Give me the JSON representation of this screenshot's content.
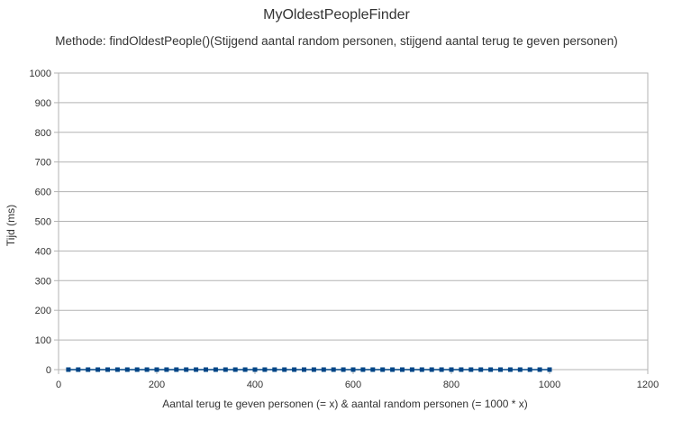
{
  "chart_data": {
    "type": "line",
    "title": "MyOldestPeopleFinder",
    "subtitle": "Methode: findOldestPeople()(Stijgend aantal random personen, stijgend aantal terug te geven personen)",
    "xlabel": "Aantal terug te geven personen (= x) & aantal random personen (= 1000 * x)",
    "ylabel": "Tijd (ms)",
    "xlim": [
      0,
      1200
    ],
    "ylim": [
      0,
      1000
    ],
    "xticks": [
      0,
      200,
      400,
      600,
      800,
      1000,
      1200
    ],
    "yticks": [
      0,
      100,
      200,
      300,
      400,
      500,
      600,
      700,
      800,
      900,
      1000
    ],
    "grid": true,
    "line_color": "#004586",
    "marker_color": "#004586",
    "series": [
      {
        "x": [
          20,
          40,
          60,
          80,
          100,
          120,
          140,
          160,
          180,
          200,
          220,
          240,
          260,
          280,
          300,
          320,
          340,
          360,
          380,
          400,
          420,
          440,
          460,
          480,
          500,
          520,
          540,
          560,
          580,
          600,
          620,
          640,
          660,
          680,
          700,
          720,
          740,
          760,
          780,
          800,
          820,
          840,
          860,
          880,
          900,
          920,
          940,
          960,
          980,
          1000
        ],
        "values": [
          0,
          0,
          0,
          0,
          0,
          0,
          0,
          0,
          0,
          0,
          0,
          0,
          0,
          0,
          0,
          0,
          0,
          0,
          0,
          0,
          0,
          0,
          0,
          0,
          0,
          0,
          0,
          0,
          0,
          0,
          0,
          0,
          0,
          0,
          0,
          0,
          0,
          0,
          0,
          0,
          0,
          0,
          0,
          0,
          0,
          0,
          0,
          0,
          0,
          0
        ]
      }
    ]
  }
}
